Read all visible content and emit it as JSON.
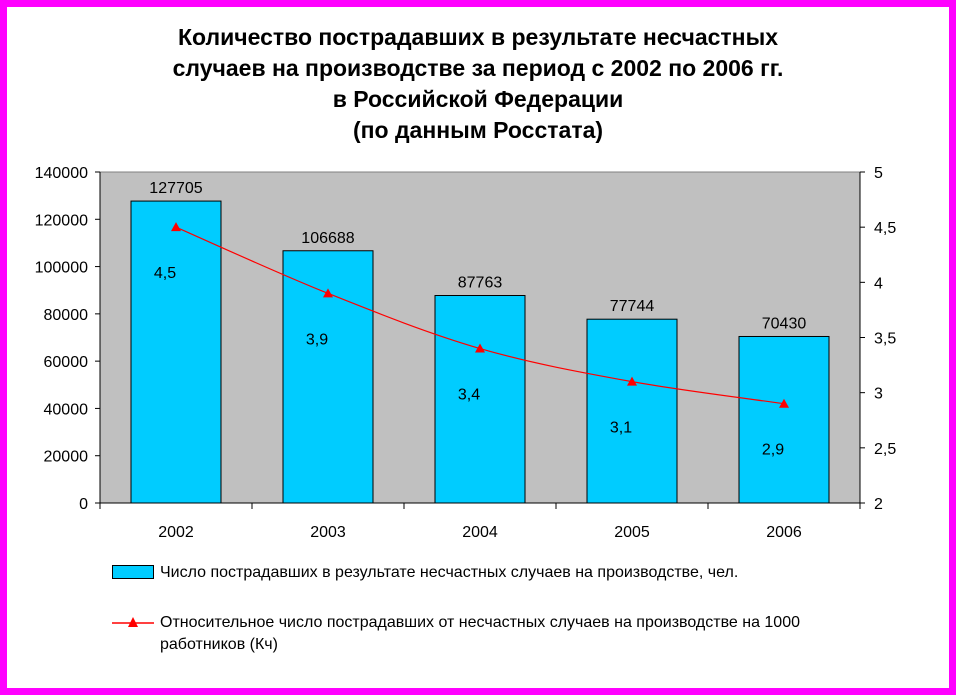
{
  "title_lines": [
    "Количество пострадавших в результате несчастных",
    "случаев на производстве за период с 2002 по 2006 гг.",
    "в Российской Федерации",
    "(по данным Росстата)"
  ],
  "colors": {
    "frame": "#ff00ff",
    "plot_bg": "#c0c0c0",
    "bar": "#00ccff",
    "line": "#ff0000"
  },
  "chart_data": {
    "type": "bar",
    "categories": [
      "2002",
      "2003",
      "2004",
      "2005",
      "2006"
    ],
    "series": [
      {
        "name": "Число пострадавших в результате несчастных случаев на производстве, чел.",
        "type": "bar",
        "axis": "left",
        "values": [
          127705,
          106688,
          87763,
          77744,
          70430
        ],
        "labels": [
          "127705",
          "106688",
          "87763",
          "77744",
          "70430"
        ]
      },
      {
        "name": "Относительное число пострадавших от несчастных случаев на производстве на 1000 работников (Кч)",
        "type": "line",
        "axis": "right",
        "values": [
          4.5,
          3.9,
          3.4,
          3.1,
          2.9
        ],
        "labels": [
          "4,5",
          "3,9",
          "3,4",
          "3,1",
          "2,9"
        ]
      }
    ],
    "y_left": {
      "range": [
        0,
        140000
      ],
      "ticks": [
        "0",
        "20000",
        "40000",
        "60000",
        "80000",
        "100000",
        "120000",
        "140000"
      ]
    },
    "y_right": {
      "range": [
        2,
        5
      ],
      "ticks": [
        "2",
        "2,5",
        "3",
        "3,5",
        "4",
        "4,5",
        "5"
      ]
    },
    "grid": false,
    "legend_position": "bottom"
  }
}
